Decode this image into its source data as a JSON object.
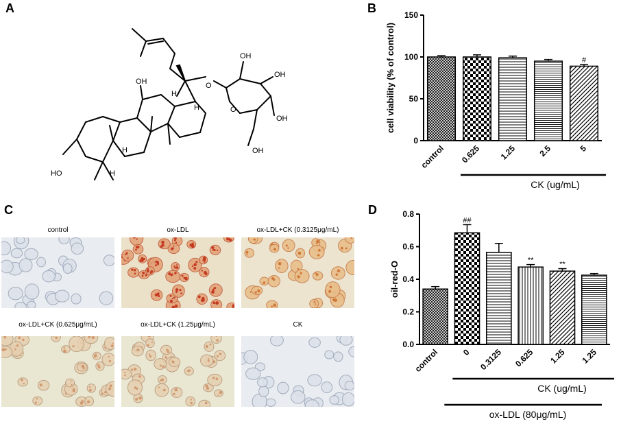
{
  "panels": {
    "a": "A",
    "b": "B",
    "c": "C",
    "d": "D"
  },
  "structure": {
    "labels": {
      "oh_top": "OH",
      "oh_c12": "OH",
      "oh_c3": "HO",
      "o_glyco": "O",
      "oh_s2": "OH",
      "oh_s3": "OH",
      "oh_s4": "OH",
      "oh_s6": "OH",
      "o_ring": "O",
      "h_c13": "H",
      "h_c17": "H",
      "h_c9": "H",
      "h_c5": "H"
    }
  },
  "micrographs": [
    {
      "label": "control",
      "stain": "none"
    },
    {
      "label": "ox-LDL",
      "stain": "heavy"
    },
    {
      "label": "ox-LDL+CK (0.3125μg/mL)",
      "stain": "medium"
    },
    {
      "label": "ox-LDL+CK (0.625μg/mL)",
      "stain": "light"
    },
    {
      "label": "ox-LDL+CK (1.25μg/mL)",
      "stain": "light"
    },
    {
      "label": "CK",
      "stain": "none"
    }
  ],
  "chart_data": [
    {
      "type": "bar",
      "panel": "B",
      "categories": [
        "control",
        "0.625",
        "1.25",
        "2.5",
        "5"
      ],
      "values": [
        100,
        100,
        99,
        95,
        89
      ],
      "errors": [
        1.5,
        2.5,
        2,
        2,
        2
      ],
      "annotations": [
        "",
        "",
        "",
        "",
        "#"
      ],
      "patterns": [
        "crosshatch",
        "checker",
        "hlines",
        "hlines-dense",
        "diagonal"
      ],
      "ylabel": "cell viability (% of control)",
      "xgroup_label": "CK (ug/mL)",
      "ylim": [
        0,
        150
      ],
      "yticks": [
        0,
        50,
        100,
        150
      ]
    },
    {
      "type": "bar",
      "panel": "D",
      "categories": [
        "control",
        "0",
        "0.3125",
        "0.625",
        "1.25",
        "1.25"
      ],
      "values": [
        0.34,
        0.685,
        0.565,
        0.475,
        0.45,
        0.425
      ],
      "errors": [
        0.015,
        0.05,
        0.055,
        0.015,
        0.015,
        0.01
      ],
      "annotations": [
        "",
        "##",
        "",
        "**",
        "**",
        ""
      ],
      "patterns": [
        "crosshatch",
        "checker",
        "hlines",
        "vlines",
        "diagonal",
        "hlines-dense"
      ],
      "ylabel": "oil-red-O",
      "xgroup_label": "CK (ug/mL)",
      "xgroup_label2": "ox-LDL (80μg/mL)",
      "ylim": [
        0,
        0.8
      ],
      "yticks": [
        "0.0",
        "0.2",
        "0.4",
        "0.6",
        "0.8"
      ]
    }
  ]
}
